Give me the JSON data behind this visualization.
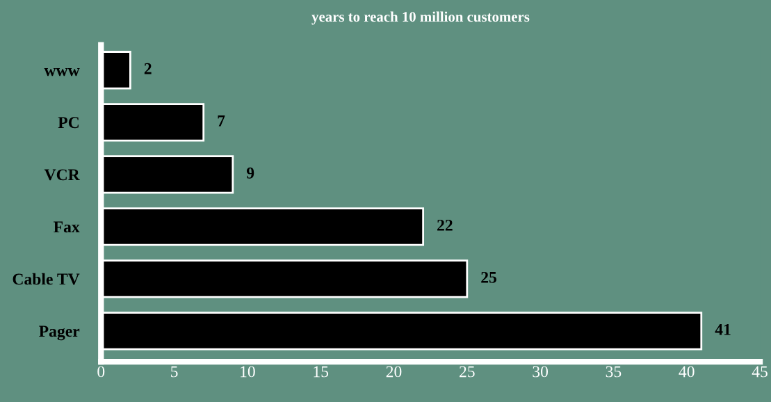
{
  "chart_data": {
    "type": "bar",
    "orientation": "horizontal",
    "title": "years to reach 10 million customers",
    "categories": [
      "www",
      "PC",
      "VCR",
      "Fax",
      "Cable TV",
      "Pager"
    ],
    "values": [
      2,
      7,
      9,
      22,
      25,
      41
    ],
    "color": "#000000",
    "xlim": [
      0,
      45
    ],
    "xticks": [
      0,
      5,
      10,
      15,
      20,
      25,
      30,
      35,
      40,
      45
    ],
    "data_labels": true,
    "grid": false
  }
}
